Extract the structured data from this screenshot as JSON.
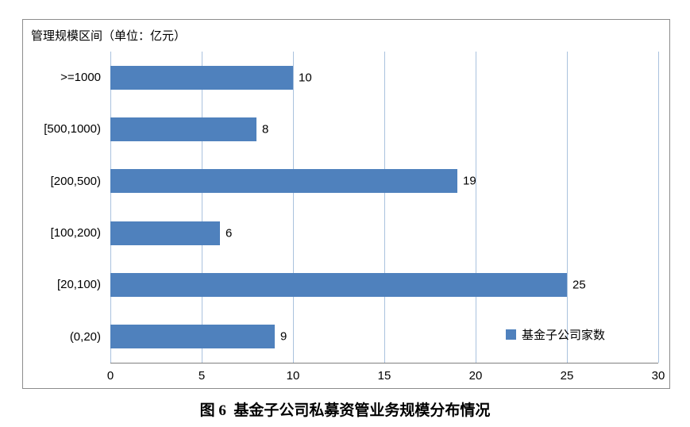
{
  "chart": {
    "bar_color": "#4f81bd",
    "gridline_color": "#aac2de",
    "caption": "图 6  基金子公司私募资管业务规模分布情况"
  },
  "chart_data": {
    "type": "bar",
    "orientation": "horizontal",
    "title": "管理规模区间（单位：亿元）",
    "series_name": "基金子公司家数",
    "categories": [
      ">=1000",
      "[500,1000)",
      "[200,500)",
      "[100,200)",
      "[20,100)",
      "(0,20)"
    ],
    "values": [
      10,
      8,
      19,
      6,
      25,
      9
    ],
    "xlabel": "",
    "ylabel": "管理规模区间（单位：亿元）",
    "xlim": [
      0,
      30
    ],
    "xticks": [
      0,
      5,
      10,
      15,
      20,
      25,
      30
    ],
    "grid": true,
    "legend_position": "inside-bottom-right"
  }
}
